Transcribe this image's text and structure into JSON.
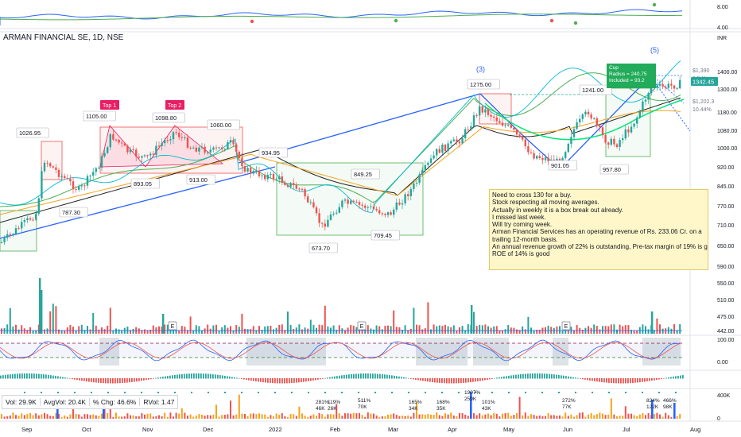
{
  "header": {
    "title": "ARMAN FINANCIAL SE, 1D, NSE",
    "currency": "INR"
  },
  "chart_data": {
    "type": "candlestick",
    "price_axis_ticks": [
      "1400.00",
      "1300.00",
      "1180.00",
      "1080.00",
      "1000.00",
      "920.00",
      "845.00",
      "770.00",
      "710.00",
      "650.00",
      "590.00",
      "550.00",
      "510.00",
      "475.00",
      "442.00"
    ],
    "top_axis_ticks": [
      "8.00",
      "4.00"
    ],
    "osc_axis_ticks": [
      "100.00",
      "0.00"
    ],
    "vol_axis_ticks": [
      "400K",
      "0"
    ],
    "x_tick_labels": [
      "Sep",
      "Oct",
      "Nov",
      "Dec",
      "2022",
      "Feb",
      "Mar",
      "Apr",
      "May",
      "Jun",
      "Jul",
      "Aug"
    ],
    "current_price": "1342.45",
    "price_labels": [
      "1026.95",
      "1105.00",
      "1098.80",
      "1060.00",
      "893.05",
      "913.00",
      "787.30",
      "934.95",
      "849.25",
      "673.70",
      "709.45",
      "1275.00",
      "901.05",
      "1241.00",
      "957.80"
    ],
    "pattern_labels": [
      "Top 1",
      "Top 2"
    ],
    "wave_labels": [
      "(3)",
      "(5)"
    ],
    "measure_labels": [
      {
        "value": "$1,390",
        "pct": "3.54%"
      },
      {
        "value": "$1,202.3",
        "pct": "10.44%"
      }
    ],
    "cup_box": [
      "Cup",
      "Radius = 240.75",
      "Included = 93.2"
    ],
    "volume_labels": [
      "281%\n46K",
      "119%\n26K",
      "511%\n70K",
      "165%\n34K",
      "168%\n35K",
      "1907%\n259K",
      "101%\n43K",
      "272%\n77K",
      "824%\n122K",
      "466%\n98K",
      "125K",
      "103K"
    ],
    "earnings_markers": [
      "E",
      "E",
      "E"
    ],
    "colors": {
      "up": "#26a69a",
      "down": "#ef5350",
      "ma_fast": "#00bcd4",
      "ma_green": "#4caf50",
      "ma_orange": "#f7a21b",
      "ma_black": "#222222",
      "trend": "#2962ff",
      "box": "#4caf50",
      "red_box": "#ef5350",
      "highlight": "#e91e63"
    }
  },
  "note": [
    "Need to cross 130 for a buy.",
    "Stock respecting all moving averages.",
    "Actually in weekly it is a box break out already.",
    "I missed last week.",
    "Will try coming week.",
    "Arman Financial Services has an operating revenue of Rs. 233.06 Cr. on a",
    "trailing 12-month basis.",
    "An annual revenue growth of 22% is outstanding, Pre-tax margin of 19% is great,",
    "ROE of 14% is good"
  ],
  "volume_bar": {
    "vol": "Vol:  29.9K",
    "avgvol": "AvgVol:  20.4K",
    "chg": "% Chg:  46.6%",
    "rvol": "RVol:  1.47"
  }
}
